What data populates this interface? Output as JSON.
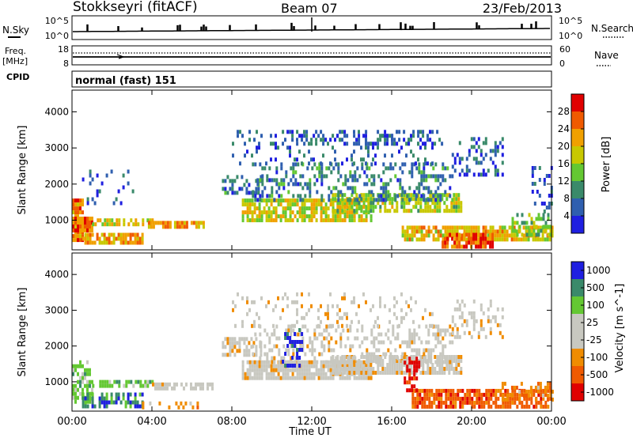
{
  "header": {
    "station": "Stokkseyri (fitACF)",
    "beam": "Beam 07",
    "date": "23/Feb/2013"
  },
  "top_panel": {
    "left_label": "N.Sky",
    "right_label": "N.Search",
    "tick_high": "10^5",
    "tick_low": "10^0"
  },
  "freq_panel": {
    "left_label": "Freq.",
    "left_unit": "[MHz]",
    "left_top": "18",
    "left_bottom": "8",
    "right_top": "60",
    "right_bottom": "0",
    "right_label": "Nave"
  },
  "cpid": {
    "label": "CPID",
    "value": "normal (fast) 151"
  },
  "colors": {
    "power": [
      "#1f1fe0",
      "#2f5faf",
      "#3a8a6a",
      "#64c832",
      "#c8c800",
      "#f0a000",
      "#f05a00",
      "#e00000"
    ],
    "velocity": [
      "#e00000",
      "#f05a00",
      "#f08c00",
      "#c8c8c0",
      "#c8c8c0",
      "#64c832",
      "#3a8a6a",
      "#1f1fe0"
    ],
    "ground_scatter": "#b4b4b4"
  },
  "chart_data": [
    {
      "type": "heatmap",
      "name": "power",
      "ylabel": "Slant Range [km]",
      "xlabel": "",
      "xlim": [
        0,
        24
      ],
      "ylim": [
        180,
        4600
      ],
      "y_ticks": [
        "1000",
        "2000",
        "3000",
        "4000"
      ],
      "colorbar_label": "Power [dB]",
      "colorbar_ticks": [
        "4",
        "8",
        "12",
        "16",
        "20",
        "24",
        "28"
      ],
      "colorbar_range": [
        0,
        32
      ],
      "regions": [
        {
          "t0": 0.0,
          "t1": 0.5,
          "r0": 400,
          "r1": 1600,
          "v": 24,
          "d": 0.85
        },
        {
          "t0": 0.0,
          "t1": 1.0,
          "r0": 700,
          "r1": 1100,
          "v": 26,
          "d": 0.9
        },
        {
          "t0": 0.5,
          "t1": 3.5,
          "r0": 350,
          "r1": 650,
          "v": 22,
          "d": 0.8
        },
        {
          "t0": 1.0,
          "t1": 4.0,
          "r0": 850,
          "r1": 1050,
          "v": 18,
          "d": 0.7
        },
        {
          "t0": 3.8,
          "t1": 6.6,
          "r0": 780,
          "r1": 980,
          "v": 22,
          "d": 0.8
        },
        {
          "t0": 0.5,
          "t1": 3.0,
          "r0": 1500,
          "r1": 2400,
          "v": 6,
          "d": 0.1
        },
        {
          "t0": 7.5,
          "t1": 9.5,
          "r0": 1750,
          "r1": 2250,
          "v": 8,
          "d": 0.5
        },
        {
          "t0": 8.5,
          "t1": 15.0,
          "r0": 1050,
          "r1": 1600,
          "v": 18,
          "d": 0.75
        },
        {
          "t0": 13.0,
          "t1": 19.5,
          "r0": 1250,
          "r1": 1750,
          "v": 16,
          "d": 0.7
        },
        {
          "t0": 9.0,
          "t1": 19.0,
          "r0": 1600,
          "r1": 2600,
          "v": 8,
          "d": 0.35
        },
        {
          "t0": 8.0,
          "t1": 18.0,
          "r0": 2600,
          "r1": 3500,
          "v": 6,
          "d": 0.15
        },
        {
          "t0": 10.5,
          "t1": 18.5,
          "r0": 3100,
          "r1": 3500,
          "v": 6,
          "d": 0.3
        },
        {
          "t0": 19.0,
          "t1": 21.5,
          "r0": 2300,
          "r1": 3300,
          "v": 6,
          "d": 0.35
        },
        {
          "t0": 16.5,
          "t1": 24.0,
          "r0": 450,
          "r1": 850,
          "v": 20,
          "d": 0.8
        },
        {
          "t0": 18.5,
          "t1": 21.0,
          "r0": 300,
          "r1": 650,
          "v": 26,
          "d": 0.8
        },
        {
          "t0": 22.0,
          "t1": 24.0,
          "r0": 600,
          "r1": 1200,
          "v": 14,
          "d": 0.4
        },
        {
          "t0": 23.0,
          "t1": 24.0,
          "r0": 1200,
          "r1": 2500,
          "v": 6,
          "d": 0.25
        }
      ]
    },
    {
      "type": "heatmap",
      "name": "velocity",
      "ylabel": "Slant Range [km]",
      "xlabel": "Time UT",
      "xlim": [
        0,
        24
      ],
      "ylim": [
        180,
        4600
      ],
      "x_ticks": [
        "00:00",
        "04:00",
        "08:00",
        "12:00",
        "16:00",
        "20:00",
        "00:00"
      ],
      "y_ticks": [
        "1000",
        "2000",
        "3000",
        "4000"
      ],
      "colorbar_label": "Velocity [m s^-1]",
      "colorbar_ticks": [
        "-1000",
        "-500",
        "-100",
        "-25",
        "25",
        "100",
        "500",
        "1000"
      ],
      "regions": [
        {
          "t0": 0.0,
          "t1": 1.0,
          "r0": 400,
          "r1": 1600,
          "c": 5,
          "d": 0.7
        },
        {
          "t0": 0.5,
          "t1": 3.5,
          "r0": 350,
          "r1": 700,
          "c": 6,
          "d": 0.6
        },
        {
          "t0": 1.0,
          "t1": 4.0,
          "r0": 850,
          "r1": 1050,
          "c": 5,
          "d": 0.6
        },
        {
          "t0": 4.0,
          "t1": 7.0,
          "r0": 780,
          "r1": 980,
          "c": 3,
          "d": 0.7
        },
        {
          "t0": 3.5,
          "t1": 6.5,
          "r0": 250,
          "r1": 450,
          "c": 2,
          "d": 0.25
        },
        {
          "t0": 7.5,
          "t1": 9.5,
          "r0": 1750,
          "r1": 2250,
          "c": 3,
          "d": 0.6
        },
        {
          "t0": 8.5,
          "t1": 15.0,
          "r0": 1050,
          "r1": 1600,
          "c": 3,
          "d": 0.85
        },
        {
          "t0": 13.0,
          "t1": 19.5,
          "r0": 1250,
          "r1": 1750,
          "c": 3,
          "d": 0.8
        },
        {
          "t0": 9.0,
          "t1": 19.0,
          "r0": 1600,
          "r1": 2600,
          "c": 3,
          "d": 0.35
        },
        {
          "t0": 10.5,
          "t1": 11.5,
          "r0": 1500,
          "r1": 2500,
          "c": 7,
          "d": 0.35
        },
        {
          "t0": 8.0,
          "t1": 18.0,
          "r0": 2600,
          "r1": 3500,
          "c": 3,
          "d": 0.15
        },
        {
          "t0": 19.0,
          "t1": 21.5,
          "r0": 2300,
          "r1": 3300,
          "c": 3,
          "d": 0.3
        },
        {
          "t0": 17.0,
          "t1": 24.0,
          "r0": 350,
          "r1": 800,
          "c": 1,
          "d": 0.8
        },
        {
          "t0": 16.6,
          "t1": 17.4,
          "r0": 800,
          "r1": 1700,
          "c": 0,
          "d": 0.5
        },
        {
          "t0": 21.5,
          "t1": 24.0,
          "r0": 450,
          "r1": 1000,
          "c": 2,
          "d": 0.35
        }
      ]
    }
  ]
}
